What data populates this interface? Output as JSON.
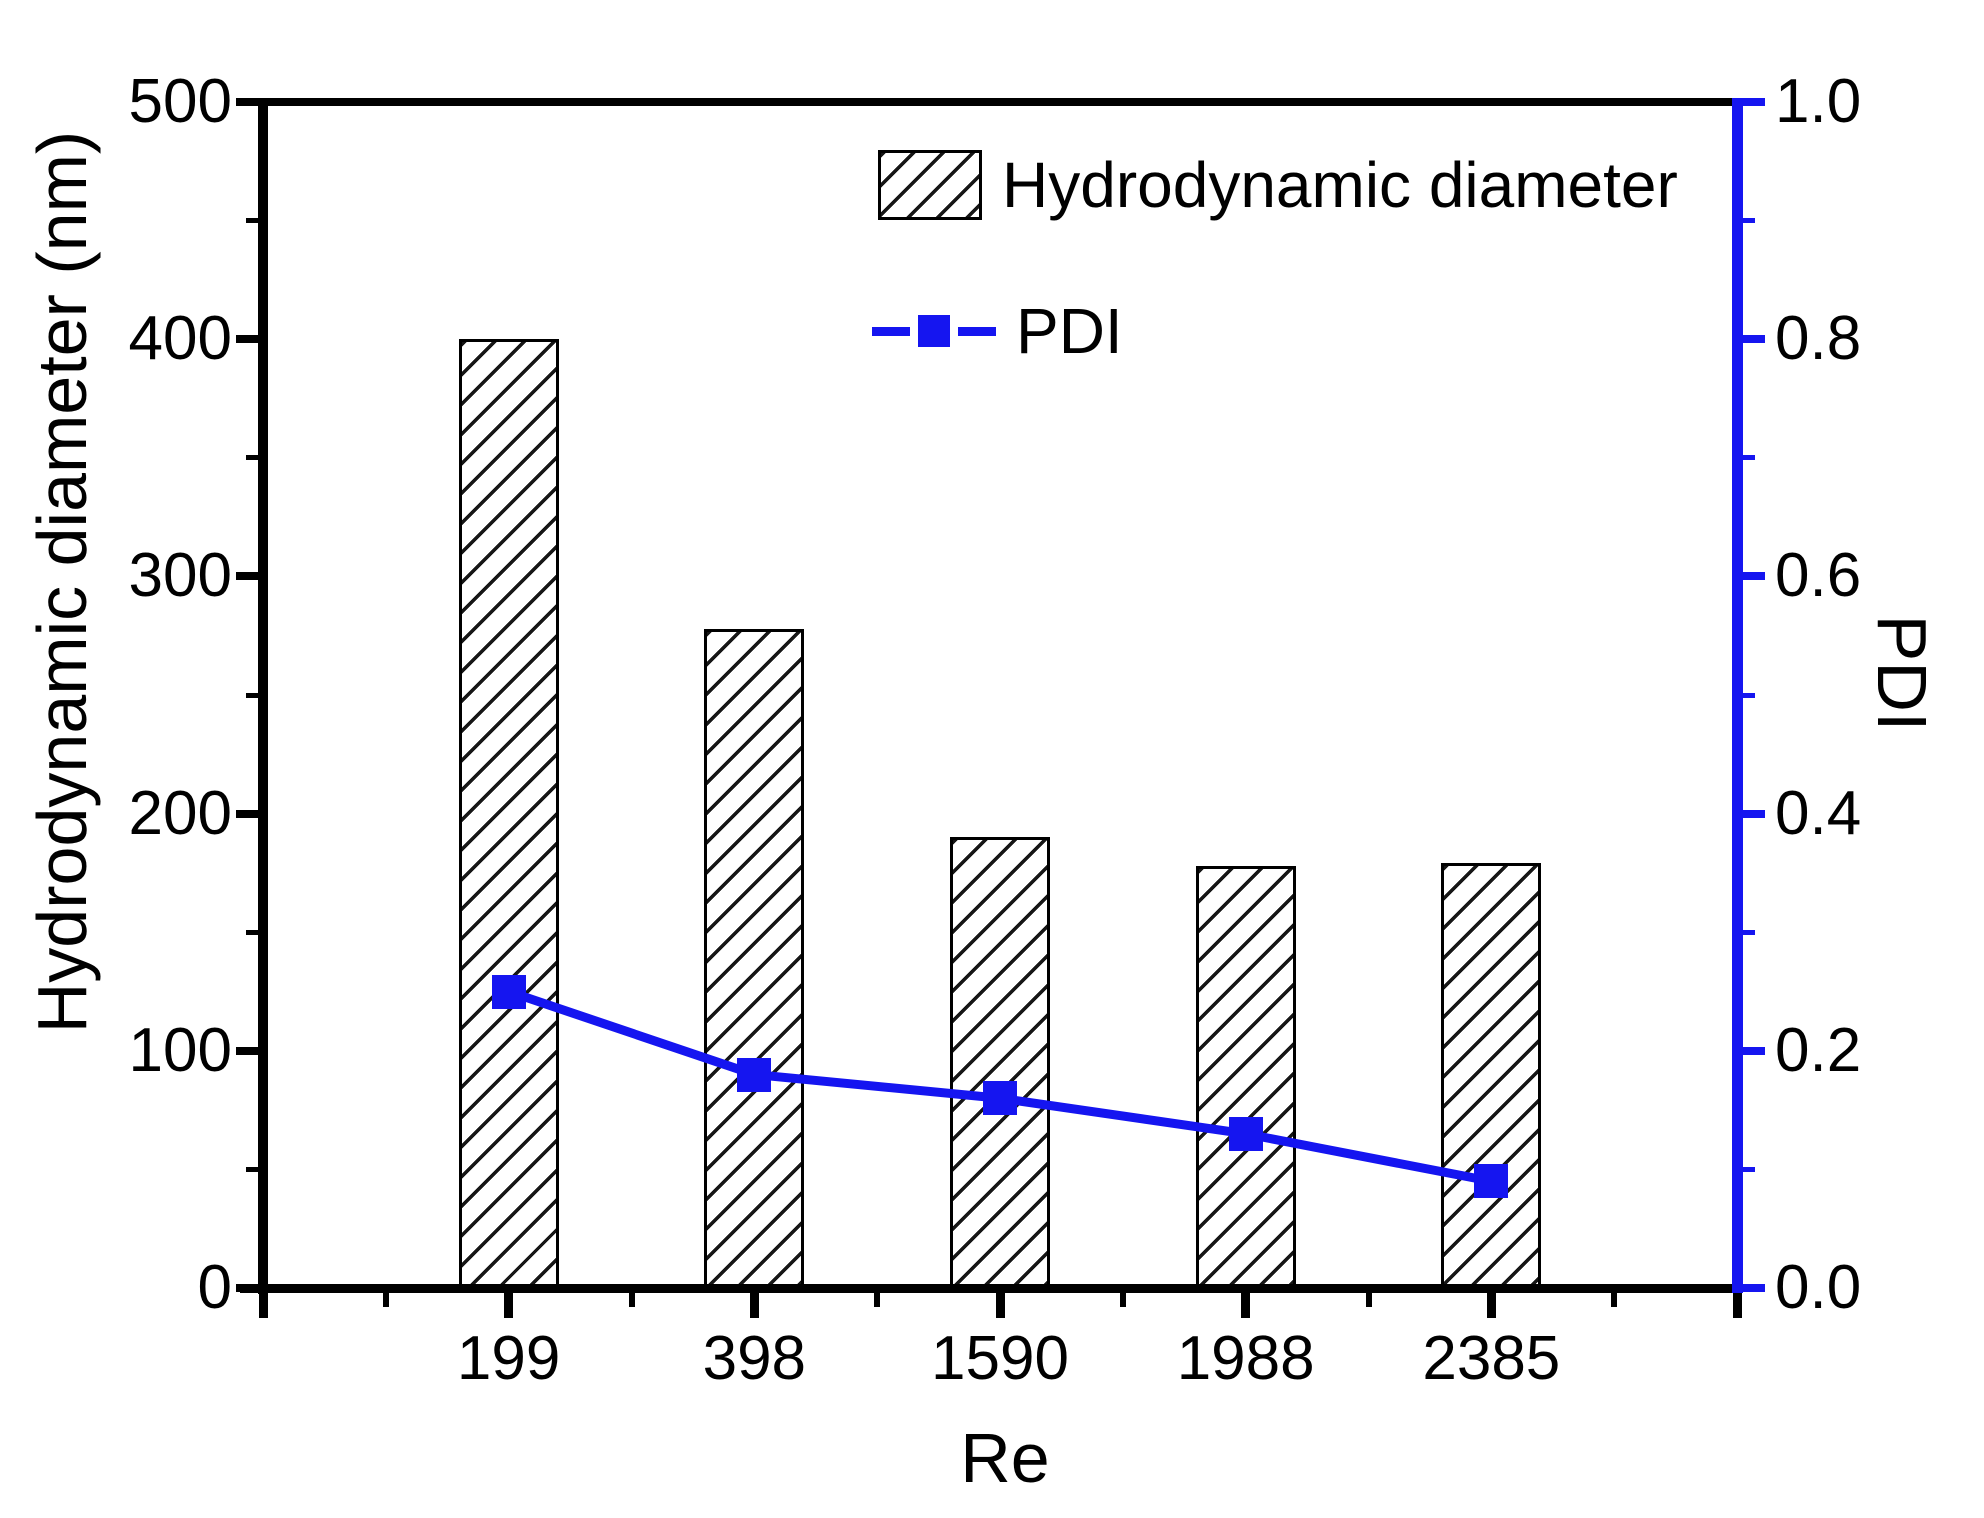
{
  "figure": {
    "x_title": "Re",
    "y_left_title": "Hydrodynamic diameter (nm)",
    "y_right_title": "PDI"
  },
  "legend": {
    "items": [
      {
        "label": "Hydrodynamic diameter",
        "swatch": "hatched-bar"
      },
      {
        "label": "PDI",
        "swatch": "blue-dash-square-dash"
      }
    ]
  },
  "chart_data": {
    "type": "bar+line",
    "categories": [
      "199",
      "398",
      "1590",
      "1988",
      "2385"
    ],
    "series": [
      {
        "name": "Hydrodynamic diameter",
        "type": "bar",
        "axis": "left",
        "unit": "nm",
        "values": [
          400,
          278,
          190,
          178,
          179
        ]
      },
      {
        "name": "PDI",
        "type": "line",
        "axis": "right",
        "marker": "square",
        "values": [
          0.25,
          0.18,
          0.16,
          0.13,
          0.09
        ]
      }
    ],
    "xlabel": "Re",
    "ylabel_left": "Hydrodynamic diameter (nm)",
    "ylabel_right": "PDI",
    "ylim_left": [
      0,
      500
    ],
    "ylim_right": [
      0.0,
      1.0
    ],
    "yticks_left": [
      "0",
      "100",
      "200",
      "300",
      "400",
      "500"
    ],
    "yticks_right": [
      "0.0",
      "0.2",
      "0.4",
      "0.6",
      "0.8",
      "1.0"
    ],
    "minor_ticks_left_step": 50,
    "minor_ticks_right_step": 0.1,
    "grid": false,
    "legend_position": "inside-top-center",
    "bar_hatch": "diagonal-forward",
    "colors": {
      "bar_fill": "#ffffff",
      "hatch": "#161616",
      "bar_border": "#000000",
      "line": "#1515f0",
      "axis_left": "#000000",
      "axis_right": "#1515f0",
      "text": "#000000"
    }
  }
}
